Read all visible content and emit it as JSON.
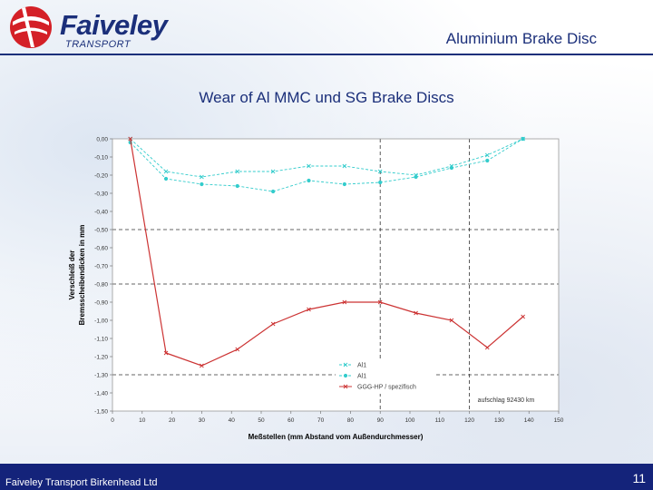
{
  "header": {
    "logo_text": "Faiveley",
    "logo_subtext": "TRANSPORT",
    "title": "Aluminium Brake Disc"
  },
  "slide": {
    "title": "Wear  of Al MMC und SG Brake Discs"
  },
  "footer": {
    "company": "Faiveley Transport Birkenhead Ltd",
    "page_number": "11"
  },
  "colors": {
    "brand_navy": "#1b2f7a",
    "footer_bg": "#14237a",
    "logo_red": "#d42027",
    "series_cyan": "#33cccc",
    "series_red": "#cc3333"
  },
  "chart_data": {
    "type": "line",
    "xlabel": "Meßstellen (mm Abstand vom Außendurchmesser)",
    "ylabel_lines": [
      "Verschleiß der",
      "Bremsscheibendicken in mm"
    ],
    "xlim": [
      0,
      150
    ],
    "ylim": [
      -1.5,
      0.0
    ],
    "x_ticks": [
      0,
      10,
      20,
      30,
      40,
      50,
      60,
      70,
      80,
      90,
      100,
      110,
      120,
      130,
      140,
      150
    ],
    "y_ticks": [
      0.0,
      -0.1,
      -0.2,
      -0.3,
      -0.4,
      -0.5,
      -0.6,
      -0.7,
      -0.8,
      -0.9,
      -1.0,
      -1.1,
      -1.2,
      -1.3,
      -1.4,
      -1.5
    ],
    "y_tick_labels": [
      "0,00",
      "-0,10",
      "-0,20",
      "-0,30",
      "-0,40",
      "-0,50",
      "-0,60",
      "-0,70",
      "-0,80",
      "-0,90",
      "-1,00",
      "-1,10",
      "-1,20",
      "-1,30",
      "-1,40",
      "-1,50"
    ],
    "grid": {
      "horizontal_dashed_at": [
        -0.5,
        -0.8,
        -1.3
      ],
      "vertical_dashed_at": [
        90,
        120
      ]
    },
    "legend_position": "bottom-right",
    "annotation": "aufschlag 92430 km",
    "series": [
      {
        "name": "Al1",
        "color": "#33cccc",
        "marker": "x",
        "x": [
          6,
          18,
          30,
          42,
          54,
          66,
          78,
          90,
          102,
          114,
          126,
          138
        ],
        "y": [
          0.0,
          -0.18,
          -0.21,
          -0.18,
          -0.18,
          -0.15,
          -0.15,
          -0.18,
          -0.2,
          -0.15,
          -0.09,
          0.0
        ]
      },
      {
        "name": "Al1",
        "color": "#33cccc",
        "marker": "circle",
        "x": [
          6,
          18,
          30,
          42,
          54,
          66,
          78,
          90,
          102,
          114,
          126,
          138
        ],
        "y": [
          -0.02,
          -0.22,
          -0.25,
          -0.26,
          -0.29,
          -0.23,
          -0.25,
          -0.24,
          -0.21,
          -0.16,
          -0.12,
          0.0
        ]
      },
      {
        "name": "GGG-HP / spezifisch",
        "color": "#cc3333",
        "marker": "x",
        "x": [
          6,
          18,
          30,
          42,
          54,
          66,
          78,
          90,
          102,
          114,
          126,
          138
        ],
        "y": [
          0.0,
          -1.18,
          -1.25,
          -1.16,
          -1.02,
          -0.94,
          -0.9,
          -0.9,
          -0.96,
          -1.0,
          -1.15,
          -0.98
        ]
      }
    ]
  }
}
